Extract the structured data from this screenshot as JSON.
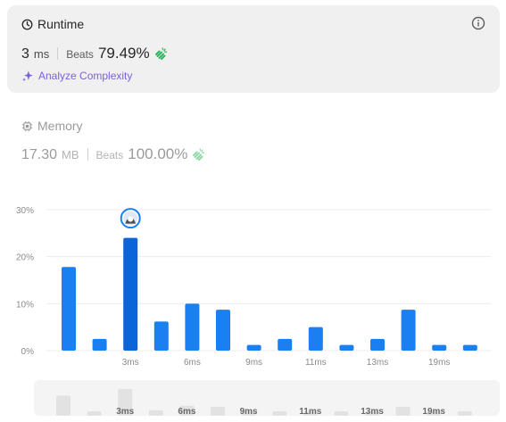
{
  "runtime": {
    "title": "Runtime",
    "value": "3",
    "unit": "ms",
    "beats_label": "Beats",
    "beats_value": "79.49%",
    "analyze_label": "Analyze Complexity"
  },
  "memory": {
    "title": "Memory",
    "value": "17.30",
    "unit": "MB",
    "beats_label": "Beats",
    "beats_value": "100.00%"
  },
  "colors": {
    "bar": "#1a7ff0",
    "bar_selected": "#0a66d8",
    "accent_purple": "#7b61e0",
    "clap_green": "#2db55d"
  },
  "chart_data": {
    "type": "bar",
    "ylim": [
      0,
      30
    ],
    "y_ticks": [
      "0%",
      "10%",
      "20%",
      "30%"
    ],
    "x_tick_labels": [
      "3ms",
      "6ms",
      "9ms",
      "11ms",
      "13ms",
      "19ms"
    ],
    "values": [
      17.8,
      2.5,
      24.0,
      6.2,
      10.0,
      8.7,
      1.2,
      2.5,
      5.0,
      1.2,
      2.5,
      8.7,
      1.2,
      1.2
    ],
    "selected_index": 2,
    "tick_bar_indices": [
      2,
      4,
      6,
      8,
      10,
      12
    ]
  },
  "overview_data": {
    "values": [
      18,
      3,
      24,
      5,
      9,
      8,
      2,
      3,
      4,
      2,
      3,
      8,
      2,
      2
    ],
    "labels": [
      "3ms",
      "6ms",
      "9ms",
      "11ms",
      "13ms",
      "19ms"
    ],
    "label_bar_indices": [
      2,
      4,
      6,
      8,
      10,
      12
    ]
  },
  "icons": [
    "clock-icon",
    "info-icon",
    "clap-icon",
    "sparkle-icon",
    "memory-chip-icon",
    "user-avatar-icon"
  ]
}
